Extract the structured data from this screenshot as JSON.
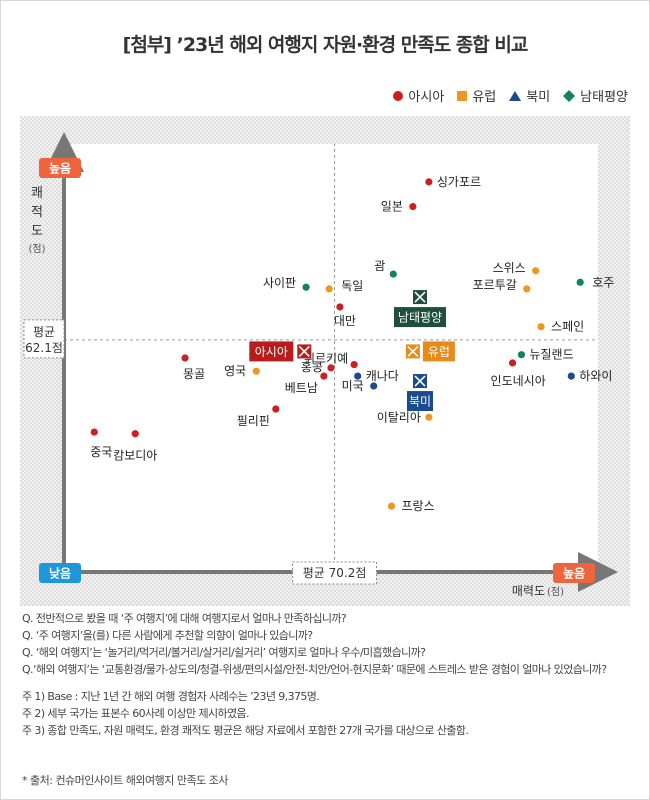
{
  "page": {
    "title": "[첨부] ’23년 해외 여행지 자원·환경 만족도 종합 비교",
    "footnotes": {
      "questions": [
        "Q. 전반적으로 봤을 때 ‘주 여행지’에 대해 여행지로서 얼마나 만족하십니까?",
        "Q. ‘주 여행지’을(를) 다른 사람에게 추천할 의향이 얼마나 있습니까?",
        "Q. ‘해외 여행지’는 ‘놀거리/먹거리/볼거리/살거리/쉴거리’ 여행지로 얼마나 우수/미흡했습니까?",
        "Q.‘해외 여행지’는 ‘교통환경/물가-상도의/청결-위생/편의시설/안전-치안/언어-현지문화’ 때문에 스트레스 받은 경험이 얼마나 있었습니까?"
      ],
      "notes": [
        "주 1) Base : 지난 1년 간 해외 여행 경험자 사례수는 ’23년 9,375명.",
        "주 2) 세부 국가는 표본수 60사례 이상만 제시하였음.",
        "주 3) 종합 만족도, 자원 매력도, 환경 쾌적도 평균은 해당 자료에서 포함한 27개 국가를 대상으로 산출함."
      ],
      "source": "* 출처: 컨슈머인사이트 해외여행지 만족도 조사"
    }
  },
  "chart_data": {
    "type": "scatter",
    "title": "[첨부] ’23년 해외 여행지 자원·환경 만족도 종합 비교",
    "xlabel": "매력도",
    "xunit": "(점)",
    "ylabel": "쾌적도",
    "yunit": "(점)",
    "x_low": "낮음",
    "x_high": "높음",
    "y_high": "높음",
    "xlim": [
      55,
      85
    ],
    "ylim": [
      48,
      74
    ],
    "x_mean": 70.2,
    "y_mean": 62.1,
    "x_mean_label": "평균 70.2점",
    "y_mean_label_1": "평균",
    "y_mean_label_2": "62.1점",
    "legend_position": "top-right",
    "colors": {
      "asia": "#cc1f1f",
      "europe": "#f0961e",
      "namerica": "#1b4b8c",
      "oceania": "#12845c",
      "low_high_badge": "#f0643c",
      "low_badge": "#1e96dc",
      "axis": "#777777",
      "background_pattern": "#e6e6e6"
    },
    "series": [
      {
        "key": "asia",
        "name": "아시아",
        "marker": "circle",
        "color": "#cc1f1f",
        "points": [
          {
            "label": "싱가포르",
            "x": 75.5,
            "y": 71.7
          },
          {
            "label": "일본",
            "x": 74.6,
            "y": 70.2
          },
          {
            "label": "대만",
            "x": 70.5,
            "y": 64.1
          },
          {
            "label": "몽골",
            "x": 61.8,
            "y": 61.0
          },
          {
            "label": "튀르키예",
            "x": 71.3,
            "y": 60.6
          },
          {
            "label": "홍콩",
            "x": 70.0,
            "y": 60.4
          },
          {
            "label": "베트남",
            "x": 69.6,
            "y": 59.9
          },
          {
            "label": "인도네시아",
            "x": 80.2,
            "y": 60.7
          },
          {
            "label": "필리핀",
            "x": 66.9,
            "y": 57.9
          },
          {
            "label": "중국",
            "x": 56.7,
            "y": 56.5
          },
          {
            "label": "캄보디아",
            "x": 59.0,
            "y": 56.4
          }
        ]
      },
      {
        "key": "europe",
        "name": "유럽",
        "marker": "square",
        "color": "#f0961e",
        "points": [
          {
            "label": "독일",
            "x": 69.9,
            "y": 65.2
          },
          {
            "label": "스위스",
            "x": 81.5,
            "y": 66.3
          },
          {
            "label": "포르투갈",
            "x": 81.0,
            "y": 65.2
          },
          {
            "label": "스페인",
            "x": 81.8,
            "y": 62.9
          },
          {
            "label": "영국",
            "x": 65.8,
            "y": 60.2
          },
          {
            "label": "이탈리아",
            "x": 75.5,
            "y": 57.4
          },
          {
            "label": "프랑스",
            "x": 73.4,
            "y": 52.0
          }
        ]
      },
      {
        "key": "namerica",
        "name": "북미",
        "marker": "triangle",
        "color": "#1b4b8c",
        "points": [
          {
            "label": "캐나다",
            "x": 71.5,
            "y": 59.9
          },
          {
            "label": "미국",
            "x": 72.4,
            "y": 59.3
          },
          {
            "label": "하와이",
            "x": 83.5,
            "y": 59.9
          }
        ]
      },
      {
        "key": "oceania",
        "name": "남태평양",
        "marker": "diamond",
        "color": "#12845c",
        "points": [
          {
            "label": "사이판",
            "x": 68.6,
            "y": 65.3
          },
          {
            "label": "괌",
            "x": 73.5,
            "y": 66.1
          },
          {
            "label": "호주",
            "x": 84.0,
            "y": 65.6
          },
          {
            "label": "뉴질랜드",
            "x": 80.7,
            "y": 61.2
          }
        ]
      }
    ],
    "regional_averages": [
      {
        "key": "asia",
        "label": "아시아",
        "x": 68.5,
        "y": 61.4
      },
      {
        "key": "europe",
        "label": "유럽",
        "x": 74.6,
        "y": 61.4
      },
      {
        "key": "namerica",
        "label": "북미",
        "x": 75.0,
        "y": 59.6
      },
      {
        "key": "oceania",
        "label": "남태평양",
        "x": 75.0,
        "y": 64.7
      }
    ]
  }
}
